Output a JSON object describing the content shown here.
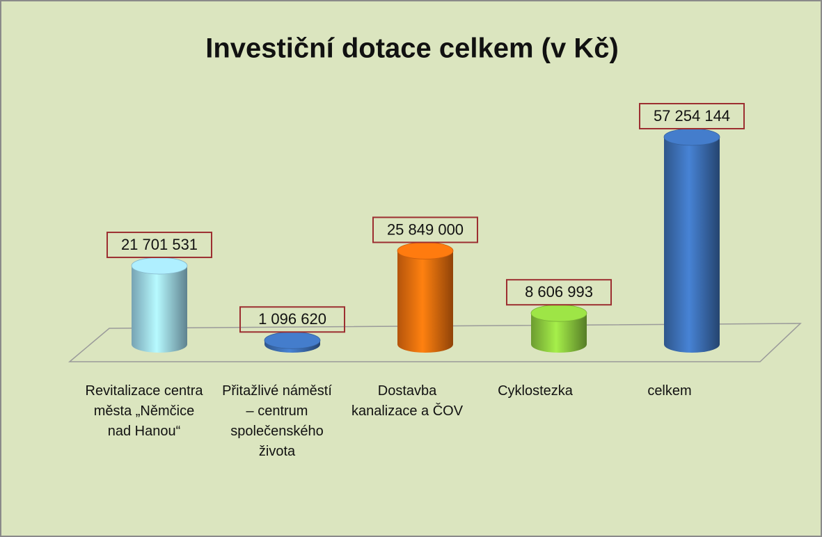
{
  "chart_data": {
    "type": "bar3d",
    "title": "Investiční dotace  celkem  (v Kč)",
    "categories": [
      "Revitalizace centra města „Němčice nad Hanou“",
      "Přitažlivé náměstí – centrum společenského života",
      "Dostavba kanalizace a ČOV",
      "Cyklostezka",
      "celkem"
    ],
    "values": [
      21701531,
      1096620,
      25849000,
      8606993,
      57254144
    ],
    "value_labels": [
      "21 701 531",
      "1 096 620",
      "25 849 000",
      "8 606 993",
      "57 254 144"
    ],
    "colors": [
      "#9fd9ee",
      "#3e72b9",
      "#f0700e",
      "#90d040",
      "#3e72b9"
    ]
  }
}
